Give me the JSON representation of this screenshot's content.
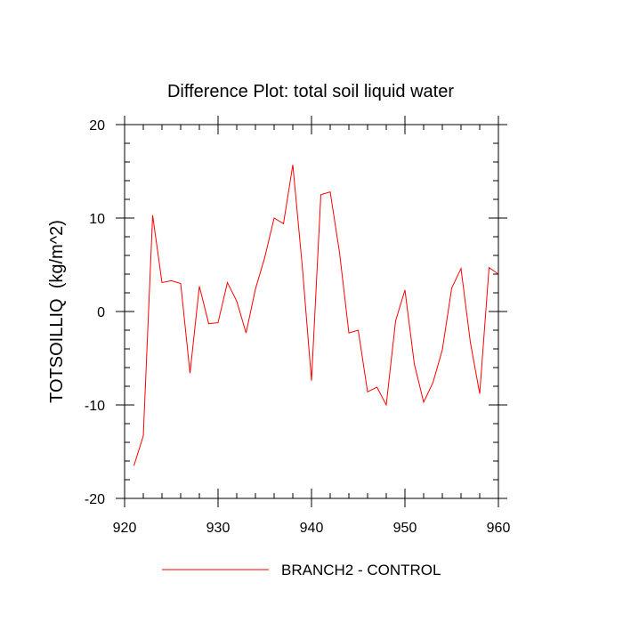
{
  "chart_data": {
    "type": "line",
    "title": "Difference Plot: total soil liquid water",
    "xlabel": "",
    "ylabel": "TOTSOILLIQ  (kg/m^2)",
    "xlim": [
      920,
      960
    ],
    "ylim": [
      -20,
      20
    ],
    "x_ticks": [
      920,
      930,
      940,
      950,
      960
    ],
    "y_ticks": [
      -20,
      -10,
      0,
      10,
      20
    ],
    "x_tick_labels": [
      "920",
      "930",
      "940",
      "950",
      "960"
    ],
    "y_tick_labels": [
      "-20",
      "-10",
      "0",
      "10",
      "20"
    ],
    "grid": false,
    "legend_position": "bottom",
    "series": [
      {
        "name": "BRANCH2 - CONTROL",
        "color": "#ff0000",
        "x": [
          921,
          922,
          923,
          924,
          925,
          926,
          927,
          928,
          929,
          930,
          931,
          932,
          933,
          934,
          935,
          936,
          937,
          938,
          939,
          940,
          941,
          942,
          943,
          944,
          945,
          946,
          947,
          948,
          949,
          950,
          951,
          952,
          953,
          954,
          955,
          956,
          957,
          958,
          959,
          960
        ],
        "y": [
          -16.5,
          -13.3,
          10.3,
          3.1,
          3.3,
          3.0,
          -6.6,
          2.7,
          -1.3,
          -1.2,
          3.1,
          1.1,
          -2.3,
          2.4,
          5.8,
          10.0,
          9.4,
          15.7,
          5.0,
          -7.4,
          12.5,
          12.8,
          6.3,
          -2.3,
          -2.0,
          -8.6,
          -8.1,
          -10.0,
          -1.0,
          2.3,
          -5.6,
          -9.7,
          -7.6,
          -4.1,
          2.5,
          4.6,
          -3.3,
          -8.8,
          4.7,
          4.0
        ]
      }
    ]
  }
}
